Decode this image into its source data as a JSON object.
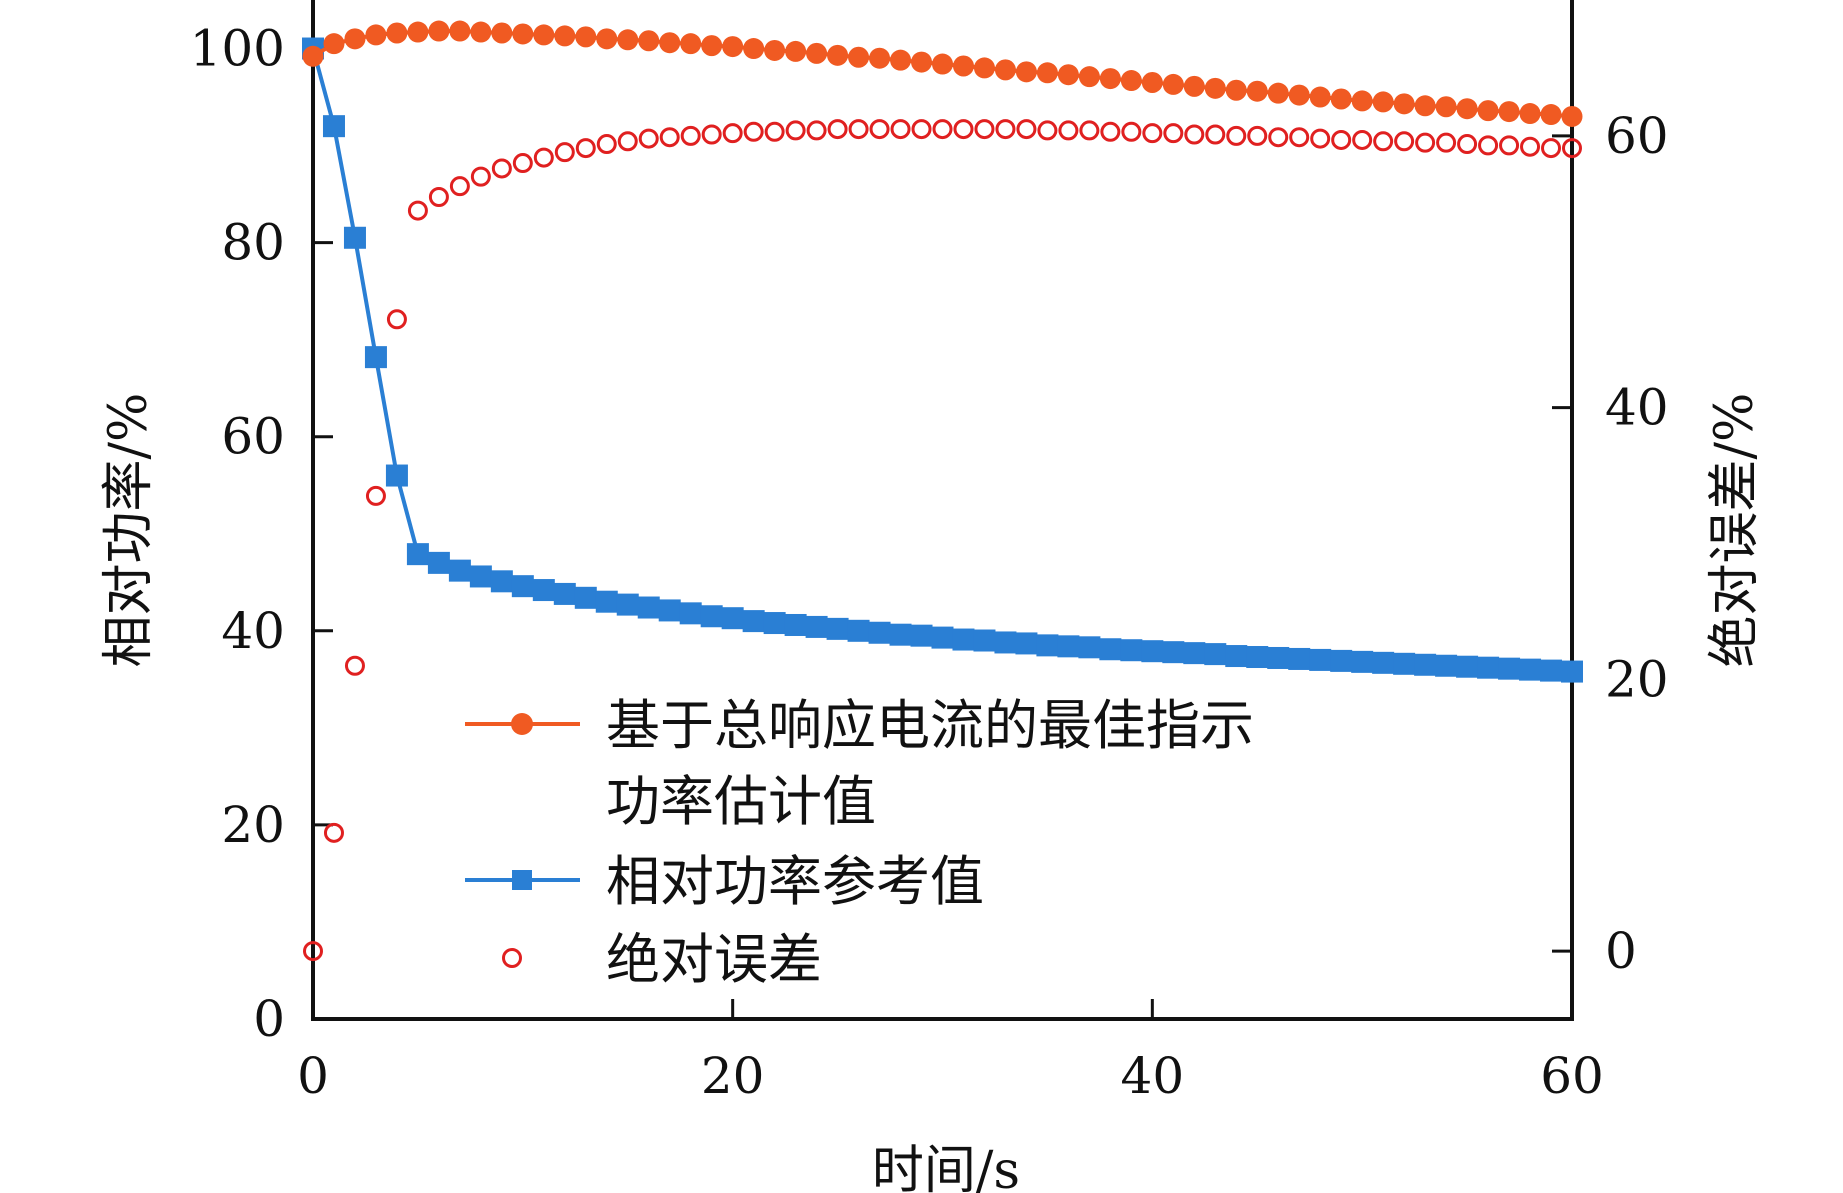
{
  "chart_data": {
    "type": "line",
    "xlabel": "时间/s",
    "ylabel": "相对功率/%",
    "y2label": "绝对误差/%",
    "xlim": [
      0,
      60
    ],
    "ylim": [
      0,
      105
    ],
    "y2lim": [
      -5,
      70
    ],
    "x_ticks": [
      0,
      20,
      40,
      60
    ],
    "y_ticks": [
      0,
      20,
      40,
      60,
      80,
      100
    ],
    "y2_ticks": [
      0,
      20,
      40,
      60
    ],
    "legend_position": "lower-center",
    "grid": false,
    "colors": {
      "estimate": "#f05a22",
      "reference": "#2a7fd4",
      "error": "#e02020",
      "axis": "#111111"
    },
    "legend": {
      "estimate_line1": "基于总响应电流的最佳指示",
      "estimate_line2": "功率估计值",
      "reference": "相对功率参考值",
      "error": "绝对误差"
    },
    "series": [
      {
        "name": "基于总响应电流的最佳指示功率估计值",
        "axis": "left",
        "marker": "filled-circle",
        "line": true,
        "x": [
          0,
          1,
          2,
          3,
          4,
          5,
          6,
          7,
          8,
          9,
          10,
          11,
          12,
          13,
          14,
          15,
          16,
          17,
          18,
          19,
          20,
          21,
          22,
          23,
          24,
          25,
          26,
          27,
          28,
          29,
          30,
          31,
          32,
          33,
          34,
          35,
          36,
          37,
          38,
          39,
          40,
          41,
          42,
          43,
          44,
          45,
          46,
          47,
          48,
          49,
          50,
          51,
          52,
          53,
          54,
          55,
          56,
          57,
          58,
          59,
          60
        ],
        "y": [
          99.2,
          100.5,
          101.0,
          101.4,
          101.6,
          101.7,
          101.8,
          101.8,
          101.7,
          101.6,
          101.5,
          101.4,
          101.3,
          101.2,
          101.0,
          100.9,
          100.8,
          100.6,
          100.5,
          100.3,
          100.2,
          100.0,
          99.8,
          99.7,
          99.5,
          99.3,
          99.1,
          99.0,
          98.8,
          98.6,
          98.4,
          98.2,
          98.0,
          97.8,
          97.6,
          97.5,
          97.3,
          97.1,
          96.9,
          96.7,
          96.5,
          96.3,
          96.1,
          95.9,
          95.7,
          95.6,
          95.4,
          95.2,
          95.0,
          94.8,
          94.6,
          94.5,
          94.3,
          94.1,
          94.0,
          93.8,
          93.6,
          93.5,
          93.3,
          93.2,
          93.0
        ]
      },
      {
        "name": "相对功率参考值",
        "axis": "left",
        "marker": "filled-square",
        "line": true,
        "x": [
          0,
          1,
          2,
          3,
          4,
          5,
          6,
          7,
          8,
          9,
          10,
          11,
          12,
          13,
          14,
          15,
          16,
          17,
          18,
          19,
          20,
          21,
          22,
          23,
          24,
          25,
          26,
          27,
          28,
          29,
          30,
          31,
          32,
          33,
          34,
          35,
          36,
          37,
          38,
          39,
          40,
          41,
          42,
          43,
          44,
          45,
          46,
          47,
          48,
          49,
          50,
          51,
          52,
          53,
          54,
          55,
          56,
          57,
          58,
          59,
          60
        ],
        "y": [
          100.0,
          92.0,
          80.5,
          68.2,
          56.0,
          47.9,
          47.0,
          46.2,
          45.6,
          45.1,
          44.6,
          44.2,
          43.8,
          43.4,
          43.0,
          42.7,
          42.4,
          42.1,
          41.8,
          41.5,
          41.3,
          41.0,
          40.8,
          40.6,
          40.4,
          40.2,
          40.0,
          39.8,
          39.6,
          39.5,
          39.3,
          39.1,
          39.0,
          38.8,
          38.7,
          38.5,
          38.4,
          38.3,
          38.1,
          38.0,
          37.9,
          37.8,
          37.7,
          37.6,
          37.4,
          37.3,
          37.2,
          37.1,
          37.0,
          36.9,
          36.8,
          36.7,
          36.6,
          36.5,
          36.4,
          36.3,
          36.2,
          36.1,
          36.0,
          35.9,
          35.8
        ]
      },
      {
        "name": "绝对误差",
        "axis": "right",
        "marker": "open-circle",
        "line": false,
        "x": [
          0,
          1,
          2,
          3,
          4,
          5,
          6,
          7,
          8,
          9,
          10,
          11,
          12,
          13,
          14,
          15,
          16,
          17,
          18,
          19,
          20,
          21,
          22,
          23,
          24,
          25,
          26,
          27,
          28,
          29,
          30,
          31,
          32,
          33,
          34,
          35,
          36,
          37,
          38,
          39,
          40,
          41,
          42,
          43,
          44,
          45,
          46,
          47,
          48,
          49,
          50,
          51,
          52,
          53,
          54,
          55,
          56,
          57,
          58,
          59,
          60
        ],
        "y": [
          0.0,
          8.7,
          21.0,
          33.5,
          46.5,
          54.5,
          55.5,
          56.3,
          57.0,
          57.6,
          58.0,
          58.4,
          58.8,
          59.1,
          59.4,
          59.6,
          59.8,
          59.9,
          60.0,
          60.1,
          60.2,
          60.3,
          60.3,
          60.4,
          60.4,
          60.5,
          60.5,
          60.5,
          60.5,
          60.5,
          60.5,
          60.5,
          60.5,
          60.5,
          60.5,
          60.4,
          60.4,
          60.4,
          60.3,
          60.3,
          60.2,
          60.2,
          60.1,
          60.1,
          60.0,
          60.0,
          59.9,
          59.9,
          59.8,
          59.7,
          59.7,
          59.6,
          59.6,
          59.5,
          59.5,
          59.4,
          59.3,
          59.3,
          59.2,
          59.1,
          59.1
        ]
      }
    ]
  }
}
